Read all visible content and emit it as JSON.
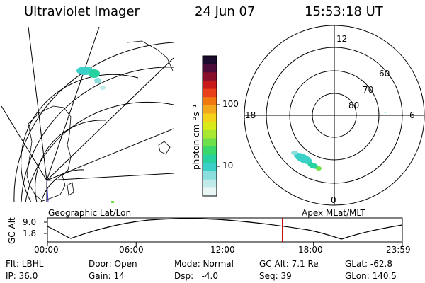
{
  "header": {
    "title": "Ultraviolet Imager",
    "date": "24 Jun 07",
    "time": "15:53:18 UT"
  },
  "colorbar": {
    "unit_label": "photon cm⁻²s⁻¹",
    "ticks": [
      "100",
      "10"
    ],
    "colors": [
      "#1a0a2e",
      "#4a0d3a",
      "#8a0f2c",
      "#c81a1a",
      "#e8401a",
      "#f07a10",
      "#f2a81a",
      "#f2d21a",
      "#d8ea1a",
      "#a8e830",
      "#6ee04a",
      "#3ad86a",
      "#28d2a0",
      "#3ad0c8",
      "#8adede",
      "#c0eaea",
      "#e8f6f6"
    ]
  },
  "left_panel": {
    "label": "Geographic Lat/Lon"
  },
  "right_panel": {
    "label": "Apex MLat/MLT",
    "lat_labels": [
      "60",
      "70",
      "80"
    ],
    "mlt_labels": {
      "top": "12",
      "left": "18",
      "right": "6",
      "bottom": "0"
    }
  },
  "altitude_plot": {
    "ylabel": "GC Alt",
    "y_ticks": [
      "9.0",
      "1.8"
    ],
    "x_ticks": [
      "00:00",
      "06:00",
      "12:00",
      "18:00",
      "23:59"
    ],
    "marker_color": "#c00000",
    "current_time_hours": 15.888
  },
  "info": {
    "filter": "Flt: LBHL",
    "ip": "IP: 36.0",
    "door": "Door: Open",
    "gain": "Gain: 14",
    "mode": "Mode: Normal",
    "dsp": "Dsp:   -4.0",
    "gc_alt": "GC Alt: 7.1 Re",
    "seq": "Seq: 39",
    "glat": "GLat: -62.8",
    "glon": "GLon: 140.5"
  }
}
